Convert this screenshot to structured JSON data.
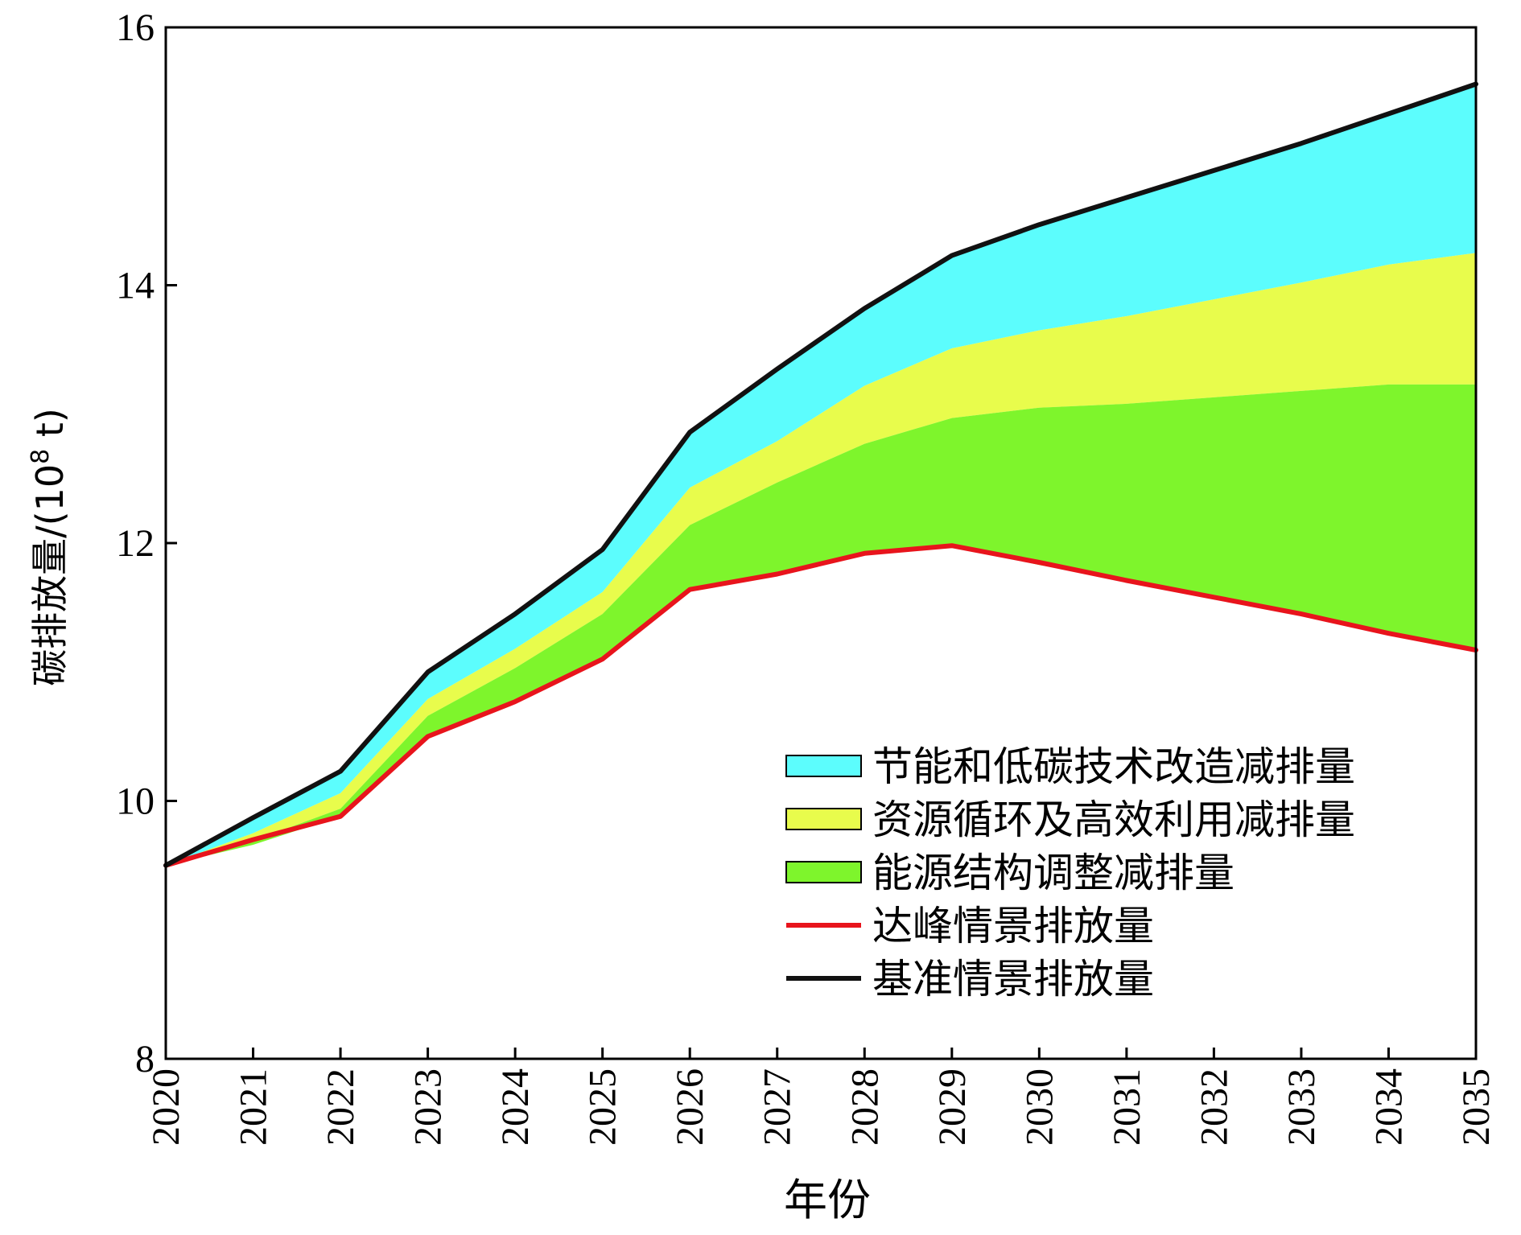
{
  "chart_data": {
    "type": "area",
    "title": "",
    "xlabel": "年份",
    "ylabel_main": "碳排放量/(10",
    "ylabel_sup": "8",
    "ylabel_tail": " t)",
    "xlim": [
      2020,
      2035
    ],
    "ylim": [
      8,
      16
    ],
    "grid": false,
    "legend_position": "lower-right",
    "x": [
      2020,
      2021,
      2022,
      2023,
      2024,
      2025,
      2026,
      2027,
      2028,
      2029,
      2030,
      2031,
      2032,
      2033,
      2034,
      2035
    ],
    "x_tick_labels": [
      "2020",
      "2021",
      "2022",
      "2023",
      "2024",
      "2025",
      "2026",
      "2027",
      "2028",
      "2029",
      "2030",
      "2031",
      "2032",
      "2033",
      "2034",
      "2035"
    ],
    "y_ticks": [
      8,
      10,
      12,
      14,
      16
    ],
    "y_tick_labels": [
      "8",
      "10",
      "12",
      "14",
      "16"
    ],
    "series": [
      {
        "name": "基准情景排放量",
        "kind": "line",
        "color": "#111111",
        "values": [
          9.5,
          9.87,
          10.23,
          11.0,
          11.45,
          11.95,
          12.86,
          13.35,
          13.82,
          14.23,
          14.47,
          14.68,
          14.89,
          15.1,
          15.33,
          15.56
        ]
      },
      {
        "name": "节能和低碳技术改造减排量",
        "kind": "band",
        "color": "#5cfdfd",
        "values": [
          0.0,
          0.12,
          0.17,
          0.21,
          0.27,
          0.33,
          0.43,
          0.56,
          0.6,
          0.72,
          0.82,
          0.92,
          1.0,
          1.08,
          1.17,
          1.31
        ]
      },
      {
        "name": "资源循环及高效利用减排量",
        "kind": "band",
        "color": "#e8fc4c",
        "values": [
          0.0,
          0.06,
          0.12,
          0.13,
          0.15,
          0.17,
          0.29,
          0.32,
          0.45,
          0.54,
          0.6,
          0.68,
          0.76,
          0.84,
          0.93,
          1.02
        ]
      },
      {
        "name": "能源结构调整减排量",
        "kind": "band",
        "color": "#7ef52c",
        "values": [
          0.0,
          0.03,
          0.06,
          0.16,
          0.26,
          0.35,
          0.5,
          0.71,
          0.85,
          0.99,
          1.22,
          1.37,
          1.55,
          1.73,
          1.93,
          2.06
        ]
      },
      {
        "name": "达峰情景排放量",
        "kind": "line",
        "color": "#e8141c",
        "values": [
          9.5,
          9.7,
          9.88,
          10.5,
          10.77,
          11.1,
          11.64,
          11.76,
          11.92,
          11.98,
          11.85,
          11.71,
          11.58,
          11.45,
          11.3,
          11.17
        ]
      }
    ],
    "legend": [
      {
        "label": "节能和低碳技术改造减排量",
        "swatch": "band",
        "color": "#5cfdfd"
      },
      {
        "label": "资源循环及高效利用减排量",
        "swatch": "band",
        "color": "#e8fc4c"
      },
      {
        "label": "能源结构调整减排量",
        "swatch": "band",
        "color": "#7ef52c"
      },
      {
        "label": "达峰情景排放量",
        "swatch": "line",
        "color": "#e8141c"
      },
      {
        "label": "基准情景排放量",
        "swatch": "line",
        "color": "#111111"
      }
    ]
  }
}
